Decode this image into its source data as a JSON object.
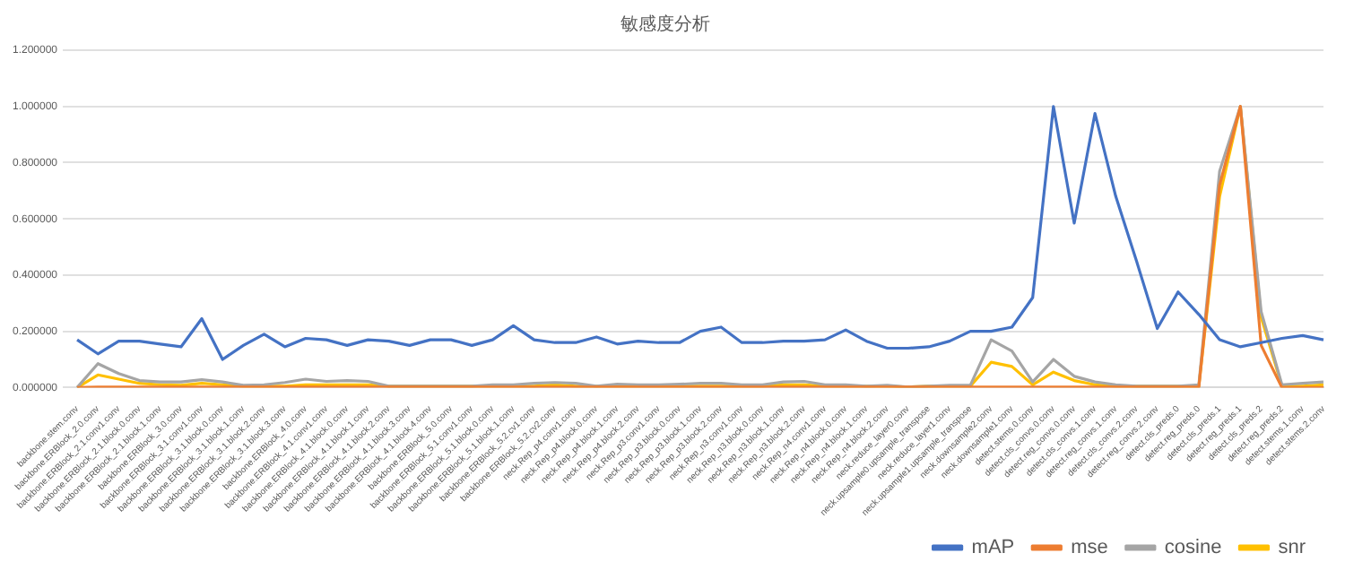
{
  "chart_data": {
    "type": "line",
    "title": "敏感度分析",
    "categories": [
      "backbone.stem.conv",
      "backbone.ERBlock_2.0.conv",
      "backbone.ERBlock_2.1.conv1.conv",
      "backbone.ERBlock_2.1.block.0.conv",
      "backbone.ERBlock_2.1.block.1.conv",
      "backbone.ERBlock_3.0.conv",
      "backbone.ERBlock_3.1.conv1.conv",
      "backbone.ERBlock_3.1.block.0.conv",
      "backbone.ERBlock_3.1.block.1.conv",
      "backbone.ERBlock_3.1.block.2.conv",
      "backbone.ERBlock_3.1.block.3.conv",
      "backbone.ERBlock_4.0.conv",
      "backbone.ERBlock_4.1.conv1.conv",
      "backbone.ERBlock_4.1.block.0.conv",
      "backbone.ERBlock_4.1.block.1.conv",
      "backbone.ERBlock_4.1.block.2.conv",
      "backbone.ERBlock_4.1.block.3.conv",
      "backbone.ERBlock_4.1.block.4.conv",
      "backbone.ERBlock_5.0.conv",
      "backbone.ERBlock_5.1.conv1.conv",
      "backbone.ERBlock_5.1.block.0.conv",
      "backbone.ERBlock_5.1.block.1.conv",
      "backbone.ERBlock_5.2.cv1.conv",
      "backbone.ERBlock_5.2.cv2.conv",
      "neck.Rep_p4.conv1.conv",
      "neck.Rep_p4.block.0.conv",
      "neck.Rep_p4.block.1.conv",
      "neck.Rep_p4.block.2.conv",
      "neck.Rep_p3.conv1.conv",
      "neck.Rep_p3.block.0.conv",
      "neck.Rep_p3.block.1.conv",
      "neck.Rep_p3.block.2.conv",
      "neck.Rep_n3.conv1.conv",
      "neck.Rep_n3.block.0.conv",
      "neck.Rep_n3.block.1.conv",
      "neck.Rep_n3.block.2.conv",
      "neck.Rep_n4.conv1.conv",
      "neck.Rep_n4.block.0.conv",
      "neck.Rep_n4.block.1.conv",
      "neck.Rep_n4.block.2.conv",
      "neck.reduce_layer0.conv",
      "neck.upsample0.upsample_transpose",
      "neck.reduce_layer1.conv",
      "neck.upsample1.upsample_transpose",
      "neck.downsample2.conv",
      "neck.downsample1.conv",
      "detect.stems.0.conv",
      "detect.cls_convs.0.conv",
      "detect.reg_convs.0.conv",
      "detect.cls_convs.1.conv",
      "detect.reg_convs.1.conv",
      "detect.cls_convs.2.conv",
      "detect.reg_convs.2.conv",
      "detect.cls_preds.0",
      "detect.reg_preds.0",
      "detect.cls_preds.1",
      "detect.reg_preds.1",
      "detect.cls_preds.2",
      "detect.reg_preds.2",
      "detect.stems.1.conv",
      "detect.stems.2.conv"
    ],
    "series": [
      {
        "name": "mAP",
        "color": "#4472c4",
        "values": [
          0.17,
          0.12,
          0.165,
          0.165,
          0.155,
          0.145,
          0.245,
          0.1,
          0.15,
          0.19,
          0.145,
          0.175,
          0.17,
          0.15,
          0.17,
          0.165,
          0.15,
          0.17,
          0.17,
          0.15,
          0.17,
          0.22,
          0.17,
          0.16,
          0.16,
          0.18,
          0.155,
          0.165,
          0.16,
          0.16,
          0.2,
          0.215,
          0.16,
          0.16,
          0.165,
          0.165,
          0.17,
          0.205,
          0.165,
          0.14,
          0.14,
          0.145,
          0.165,
          0.2,
          0.2,
          0.215,
          0.32,
          1.0,
          0.585,
          0.975,
          0.68,
          0.45,
          0.21,
          0.34,
          0.26,
          0.17,
          0.145,
          0.16,
          0.175,
          0.185,
          0.17
        ]
      },
      {
        "name": "mse",
        "color": "#ed7d31",
        "values": [
          0,
          0.002,
          0.002,
          0.002,
          0.002,
          0.002,
          0.002,
          0.002,
          0.002,
          0.002,
          0.002,
          0.002,
          0.002,
          0.002,
          0.002,
          0.002,
          0.002,
          0.002,
          0.002,
          0.002,
          0.002,
          0.002,
          0.002,
          0.002,
          0.002,
          0.002,
          0.002,
          0.002,
          0.002,
          0.002,
          0.002,
          0.002,
          0.002,
          0.002,
          0.002,
          0.002,
          0.002,
          0.002,
          0.002,
          0.002,
          0.002,
          0.002,
          0.002,
          0.002,
          0.002,
          0.002,
          0.002,
          0.002,
          0.002,
          0.002,
          0.002,
          0.002,
          0.002,
          0.002,
          0.002,
          0.72,
          1.0,
          0.15,
          0,
          0,
          0
        ]
      },
      {
        "name": "cosine",
        "color": "#a5a5a5",
        "values": [
          0,
          0.085,
          0.05,
          0.025,
          0.02,
          0.02,
          0.028,
          0.02,
          0.008,
          0.01,
          0.018,
          0.03,
          0.022,
          0.025,
          0.022,
          0.005,
          0.005,
          0.005,
          0.005,
          0.005,
          0.01,
          0.01,
          0.015,
          0.018,
          0.015,
          0.005,
          0.012,
          0.01,
          0.01,
          0.012,
          0.015,
          0.015,
          0.01,
          0.01,
          0.02,
          0.022,
          0.01,
          0.01,
          0.005,
          0.008,
          0.002,
          0.005,
          0.008,
          0.008,
          0.17,
          0.13,
          0.02,
          0.1,
          0.04,
          0.02,
          0.01,
          0.005,
          0.005,
          0.005,
          0.01,
          0.77,
          1.0,
          0.27,
          0.01,
          0.015,
          0.02
        ]
      },
      {
        "name": "snr",
        "color": "#ffc000",
        "values": [
          0,
          0.045,
          0.03,
          0.015,
          0.01,
          0.008,
          0.015,
          0.01,
          0.005,
          0.005,
          0.005,
          0.01,
          0.01,
          0.01,
          0.01,
          0.005,
          0.005,
          0.005,
          0.005,
          0.005,
          0.005,
          0.005,
          0.005,
          0.01,
          0.005,
          0.005,
          0.005,
          0.005,
          0.005,
          0.005,
          0.005,
          0.005,
          0.005,
          0.005,
          0.01,
          0.01,
          0.005,
          0.005,
          0.005,
          0.005,
          0.002,
          0.005,
          0.005,
          0.005,
          0.09,
          0.075,
          0.01,
          0.055,
          0.025,
          0.01,
          0.005,
          0.005,
          0.005,
          0.005,
          0.005,
          0.68,
          1.0,
          0.25,
          0.005,
          0.005,
          0.01
        ]
      }
    ],
    "ylim": [
      0,
      1.2
    ],
    "yticks": [
      {
        "value": 0,
        "label": "0.000000"
      },
      {
        "value": 0.2,
        "label": "0.200000"
      },
      {
        "value": 0.4,
        "label": "0.400000"
      },
      {
        "value": 0.6,
        "label": "0.600000"
      },
      {
        "value": 0.8,
        "label": "0.800000"
      },
      {
        "value": 1.0,
        "label": "1.000000"
      },
      {
        "value": 1.2,
        "label": "1.200000"
      }
    ],
    "grid": "y",
    "legend": "bottom right",
    "marker": "none",
    "line_style": "solid"
  }
}
